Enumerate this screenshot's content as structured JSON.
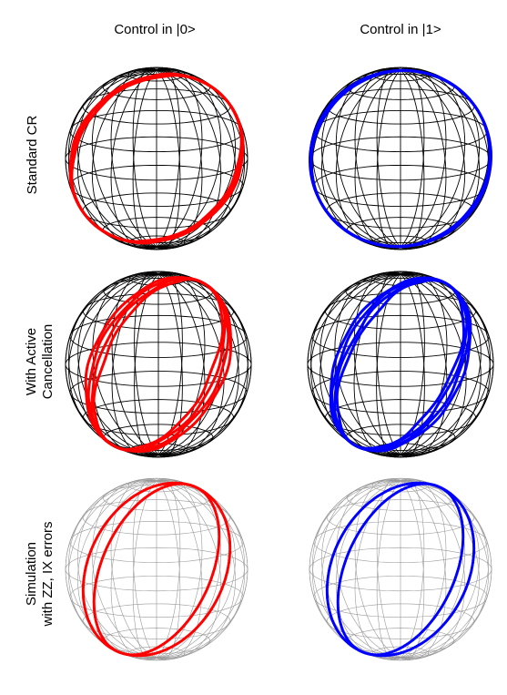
{
  "columns": {
    "left": "Control in |0>",
    "right": "Control in |1>"
  },
  "rows": {
    "standard": {
      "line1": "Standard CR"
    },
    "active": {
      "line1": "With Active",
      "line2": "Cancellation"
    },
    "simulation": {
      "line1": "Simulation",
      "line2": "with ZZ, IX errors"
    }
  },
  "colors": {
    "control_0": "#ff0000",
    "control_1": "#0000ff",
    "grid_dark": "#000000",
    "grid_light": "#999999"
  }
}
